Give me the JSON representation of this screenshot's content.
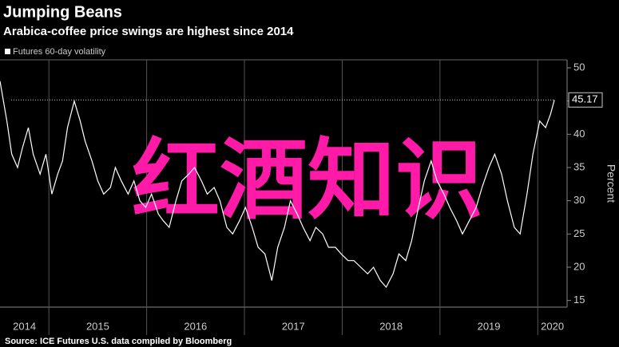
{
  "chart_data": {
    "type": "line",
    "title": "Jumping Beans",
    "subtitle": "Arabica-coffee price swings are highest since 2014",
    "source": "Source: ICE Futures U.S. data compiled by Bloomberg",
    "y_label": "Percent",
    "watermark": "红酒知识",
    "x": [
      2014.5,
      2014.57,
      2014.62,
      2014.68,
      2014.73,
      2014.79,
      2014.84,
      2014.91,
      2014.97,
      2015.03,
      2015.09,
      2015.14,
      2015.19,
      2015.26,
      2015.32,
      2015.37,
      2015.44,
      2015.5,
      2015.56,
      2015.63,
      2015.68,
      2015.74,
      2015.81,
      2015.87,
      2015.93,
      2015.99,
      2016.05,
      2016.12,
      2016.17,
      2016.23,
      2016.3,
      2016.36,
      2016.43,
      2016.49,
      2016.56,
      2016.62,
      2016.69,
      2016.75,
      2016.82,
      2016.88,
      2016.95,
      2017.01,
      2017.08,
      2017.14,
      2017.21,
      2017.28,
      2017.34,
      2017.41,
      2017.47,
      2017.54,
      2017.6,
      2017.67,
      2017.73,
      2017.8,
      2017.86,
      2017.93,
      2017.99,
      2018.06,
      2018.12,
      2018.19,
      2018.26,
      2018.32,
      2018.39,
      2018.45,
      2018.52,
      2018.58,
      2018.65,
      2018.71,
      2018.78,
      2018.84,
      2018.91,
      2018.97,
      2019.04,
      2019.1,
      2019.17,
      2019.23,
      2019.3,
      2019.37,
      2019.43,
      2019.5,
      2019.56,
      2019.63,
      2019.69,
      2019.76,
      2019.82,
      2019.89,
      2019.95,
      2020.02,
      2020.08,
      2020.13,
      2020.17
    ],
    "series": [
      {
        "name": "Futures 60-day volatility",
        "color": "#ffffff",
        "values": [
          48,
          42,
          37,
          35,
          38,
          41,
          37,
          34,
          37,
          31,
          34,
          36,
          41,
          45,
          42,
          39,
          36,
          33,
          31,
          32,
          35,
          33,
          31,
          33,
          30,
          29,
          31,
          28,
          27,
          26,
          30,
          33,
          34,
          35,
          33,
          31,
          32,
          30,
          26,
          25,
          27,
          29,
          26,
          23,
          22,
          18,
          23,
          26,
          30,
          28,
          26,
          24,
          26,
          25,
          23,
          23,
          22,
          21,
          21,
          20,
          19,
          20,
          18,
          17,
          19,
          22,
          21,
          24,
          29,
          33,
          36,
          33,
          31,
          29,
          27,
          25,
          27,
          29,
          32,
          35,
          37,
          34,
          30,
          26,
          25,
          31,
          37,
          42,
          41,
          43,
          45.17
        ]
      }
    ],
    "xlim": [
      2014.5,
      2020.3
    ],
    "xticks": [
      2014,
      2015,
      2016,
      2017,
      2018,
      2019,
      2020
    ],
    "ylim": [
      14,
      51.2
    ],
    "yticks": [
      15,
      20,
      25,
      30,
      35,
      40,
      45,
      50
    ],
    "background": "#000000"
  }
}
